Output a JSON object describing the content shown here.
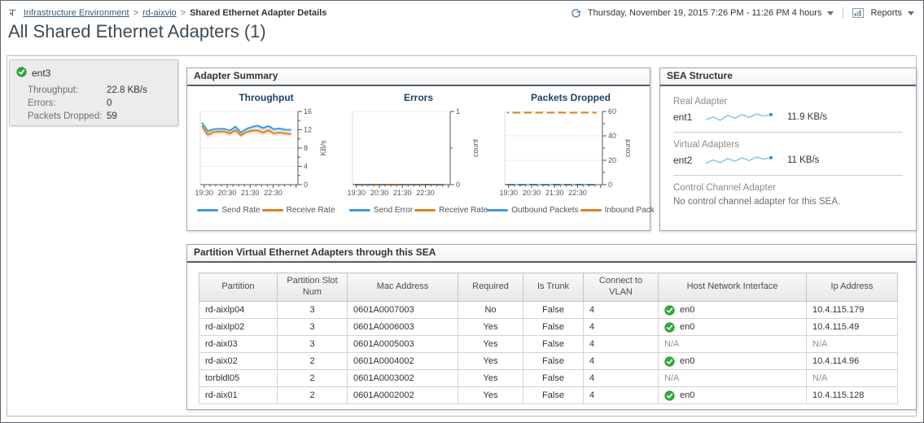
{
  "header": {
    "breadcrumb": [
      {
        "label": "Infrastructure Environment"
      },
      {
        "label": "rd-aixvio"
      },
      {
        "label": "Shared Ethernet Adapter Details"
      }
    ],
    "breadcrumb_separator": ">",
    "time_range": "Thursday, November 19, 2015 7:26 PM - 11:26 PM 4 hours",
    "reports_label": "Reports",
    "page_title": "All Shared Ethernet Adapters (1)"
  },
  "colors": {
    "send": "#3e9ad8",
    "receive": "#e0801f",
    "status_ok": "#2eae3d",
    "spark_line": "#8fc8ec",
    "spark_dot": "#2f88c6"
  },
  "adapter_card": {
    "name": "ent3",
    "status_icon": "status-ok-icon",
    "rows": [
      {
        "label": "Throughput:",
        "value": "22.8 KB/s"
      },
      {
        "label": "Errors:",
        "value": "0"
      },
      {
        "label": "Packets Dropped:",
        "value": "59"
      }
    ]
  },
  "adapter_summary": {
    "title": "Adapter Summary"
  },
  "chart_data": [
    {
      "type": "line",
      "title": "Throughput",
      "ylabel": "KB/s",
      "ylim": [
        0,
        16
      ],
      "xlim": [
        19.33,
        23.58
      ],
      "yticks": [
        {
          "v": 0,
          "l": "0"
        },
        {
          "v": 4,
          "l": "4"
        },
        {
          "v": 8,
          "l": "8"
        },
        {
          "v": 12,
          "l": "12"
        },
        {
          "v": 16,
          "l": "16"
        }
      ],
      "yminor": [
        2,
        6,
        10,
        14
      ],
      "xticks": [
        {
          "v": 19.5,
          "l": "19:30"
        },
        {
          "v": 20.5,
          "l": "20:30"
        },
        {
          "v": 21.5,
          "l": "21:30"
        },
        {
          "v": 22.5,
          "l": "22:30"
        }
      ],
      "series": [
        {
          "name": "Send Rate",
          "color": "#3e9ad8",
          "x": [
            19.42,
            19.66,
            19.9,
            20.14,
            20.38,
            20.62,
            20.86,
            21.1,
            21.34,
            21.58,
            21.82,
            22.06,
            22.3,
            22.54,
            22.78,
            23.02,
            23.26
          ],
          "values": [
            13.4,
            11.7,
            12.1,
            12.2,
            12.2,
            11.8,
            12.7,
            11.4,
            12.2,
            12.6,
            12.9,
            12.4,
            12.8,
            12.1,
            12.3,
            12.0,
            12.0
          ]
        },
        {
          "name": "Receive Rate",
          "color": "#e0801f",
          "x": [
            19.42,
            19.66,
            19.9,
            20.14,
            20.38,
            20.62,
            20.86,
            21.1,
            21.34,
            21.58,
            21.82,
            22.06,
            22.3,
            22.54,
            22.78,
            23.02,
            23.26
          ],
          "values": [
            12.7,
            10.9,
            11.5,
            11.6,
            11.6,
            11.2,
            11.9,
            10.8,
            11.5,
            11.8,
            11.9,
            11.4,
            11.9,
            11.2,
            11.4,
            11.2,
            11.1
          ]
        }
      ]
    },
    {
      "type": "line",
      "title": "Errors",
      "ylabel": "count",
      "ylim": [
        0,
        1
      ],
      "xlim": [
        19.33,
        23.58
      ],
      "yticks": [
        {
          "v": 0,
          "l": "0"
        },
        {
          "v": 1,
          "l": "1"
        }
      ],
      "yminor": [
        0.5
      ],
      "xticks": [
        {
          "v": 19.5,
          "l": "19:30"
        },
        {
          "v": 20.5,
          "l": "20:30"
        },
        {
          "v": 21.5,
          "l": "21:30"
        },
        {
          "v": 22.5,
          "l": "22:30"
        }
      ],
      "series": [
        {
          "name": "Send Error",
          "color": "#3e9ad8",
          "x": [
            19.45,
            19.93,
            20.41,
            20.89,
            21.37,
            21.85,
            22.33,
            22.81,
            23.29
          ],
          "values": [
            0,
            0,
            0,
            0,
            0,
            0,
            0,
            0,
            0
          ]
        },
        {
          "name": "Receive Rate",
          "color": "#e0801f",
          "x": [
            19.45,
            19.93,
            20.41,
            20.89,
            21.37,
            21.85,
            22.33,
            22.81,
            23.29
          ],
          "values": [
            0,
            0,
            0,
            0,
            0,
            0,
            0,
            0,
            0
          ]
        }
      ]
    },
    {
      "type": "line",
      "title": "Packets Dropped",
      "ylabel": "count",
      "ylim": [
        0,
        60
      ],
      "xlim": [
        19.33,
        23.58
      ],
      "yticks": [
        {
          "v": 0,
          "l": "0"
        },
        {
          "v": 20,
          "l": "20"
        },
        {
          "v": 40,
          "l": "40"
        },
        {
          "v": 60,
          "l": "60"
        }
      ],
      "yminor": [
        10,
        30,
        50
      ],
      "xticks": [
        {
          "v": 19.5,
          "l": "19:30"
        },
        {
          "v": 20.5,
          "l": "20:30"
        },
        {
          "v": 21.5,
          "l": "21:30"
        },
        {
          "v": 22.5,
          "l": "22:30"
        }
      ],
      "series": [
        {
          "name": "Outbound Packets",
          "color": "#3e9ad8",
          "x": [
            19.45,
            19.93,
            20.41,
            20.89,
            21.37,
            21.85,
            22.33,
            22.81,
            23.29
          ],
          "values": [
            0,
            0,
            0,
            0,
            0,
            0,
            0,
            0,
            0
          ]
        },
        {
          "name": "Inbound Pack",
          "color": "#e0801f",
          "x": [
            19.45,
            19.93,
            20.41,
            20.89,
            21.37,
            21.85,
            22.33,
            22.81,
            23.29
          ],
          "values": [
            59,
            59,
            59,
            59,
            59,
            59,
            59,
            59,
            59
          ]
        }
      ]
    }
  ],
  "sea_structure": {
    "title": "SEA Structure",
    "sections": [
      {
        "label": "Real Adapter",
        "name": "ent1",
        "value": "11.9 KB/s",
        "spark": [
          11.2,
          11.6,
          11.1,
          11.8,
          11.4,
          11.9,
          11.5,
          12.0,
          11.7,
          11.9
        ]
      },
      {
        "label": "Virtual Adapters",
        "name": "ent2",
        "value": "11 KB/s",
        "spark": [
          10.8,
          11.3,
          10.9,
          11.5,
          11.1,
          11.6,
          11.2,
          11.7,
          11.4,
          11.6
        ]
      },
      {
        "label": "Control Channel Adapter",
        "message": "No control channel adapter for this SEA."
      }
    ]
  },
  "partition_table": {
    "title": "Partition Virtual Ethernet Adapters through this SEA",
    "columns": [
      {
        "key": "partition",
        "label": "Partition"
      },
      {
        "key": "slot",
        "label": "Partition Slot Num"
      },
      {
        "key": "mac",
        "label": "Mac Address"
      },
      {
        "key": "required",
        "label": "Required"
      },
      {
        "key": "trunk",
        "label": "Is Trunk"
      },
      {
        "key": "vlan",
        "label": "Connect to VLAN"
      },
      {
        "key": "host",
        "label": "Host Network Interface"
      },
      {
        "key": "ip",
        "label": "Ip Address"
      }
    ],
    "rows": [
      {
        "partition": "rd-aixlp04",
        "slot": "3",
        "mac": "0601A0007003",
        "required": "No",
        "trunk": "False",
        "vlan": "4",
        "host": "en0",
        "host_status": "ok",
        "ip": "10.4.115.179"
      },
      {
        "partition": "rd-aixlp02",
        "slot": "3",
        "mac": "0601A0006003",
        "required": "Yes",
        "trunk": "False",
        "vlan": "4",
        "host": "en0",
        "host_status": "ok",
        "ip": "10.4.115.49"
      },
      {
        "partition": "rd-aix03",
        "slot": "3",
        "mac": "0601A0005003",
        "required": "Yes",
        "trunk": "False",
        "vlan": "4",
        "host": "N/A",
        "host_status": "na",
        "ip": "N/A"
      },
      {
        "partition": "rd-aix02",
        "slot": "2",
        "mac": "0601A0004002",
        "required": "Yes",
        "trunk": "False",
        "vlan": "4",
        "host": "en0",
        "host_status": "ok",
        "ip": "10.4.114.96"
      },
      {
        "partition": "torbldl05",
        "slot": "2",
        "mac": "0601A0003002",
        "required": "Yes",
        "trunk": "False",
        "vlan": "4",
        "host": "N/A",
        "host_status": "na",
        "ip": "N/A"
      },
      {
        "partition": "rd-aix01",
        "slot": "2",
        "mac": "0601A0002002",
        "required": "Yes",
        "trunk": "False",
        "vlan": "4",
        "host": "en0",
        "host_status": "ok",
        "ip": "10.4.115.128"
      }
    ]
  }
}
